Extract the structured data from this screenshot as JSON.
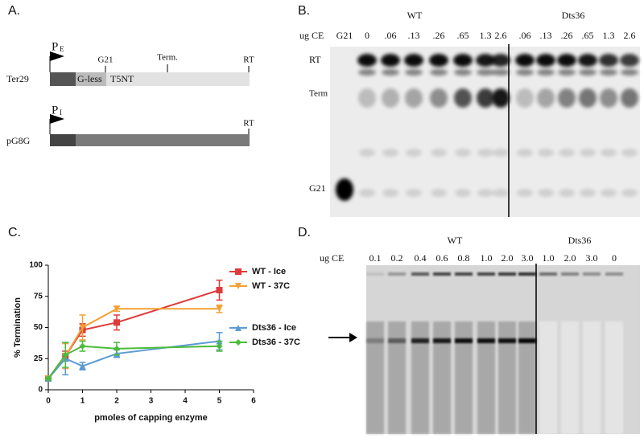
{
  "panel_a": {
    "label": "A.",
    "construct1": {
      "name": "Ter29",
      "promoter": "P",
      "promoter_sub": "E",
      "site1": "G21",
      "site2": "Term.",
      "end": "RT",
      "region1": "G-less",
      "region2": "T5NT"
    },
    "construct2": {
      "name": "pG8G",
      "promoter": "P",
      "promoter_sub": "I",
      "end": "RT"
    }
  },
  "panel_b": {
    "label": "B.",
    "group1": "WT",
    "group2": "Dts36",
    "row_header": "ug CE",
    "lanes": [
      "G21",
      "0",
      ".06",
      ".13",
      ".26",
      ".65",
      "1.3",
      "2.6",
      ".06",
      ".13",
      ".26",
      ".65",
      "1.3",
      "2.6"
    ],
    "bands": [
      "RT",
      "Term",
      "G21"
    ]
  },
  "panel_c": {
    "label": "C."
  },
  "chart_data": {
    "type": "line",
    "x_label": "pmoles of capping enzyme",
    "y_label": "% Termination",
    "x": [
      0,
      0.5,
      1,
      2,
      5
    ],
    "xlim": [
      0,
      6
    ],
    "xticks": [
      0,
      1,
      2,
      3,
      4,
      5,
      6
    ],
    "ylim": [
      0,
      100
    ],
    "yticks": [
      0,
      25,
      50,
      75,
      100
    ],
    "grid": false,
    "legend": "right",
    "series": [
      {
        "name": "WT - Ice",
        "color": "#e03a3a",
        "marker": "square",
        "values": [
          9,
          27,
          48,
          54,
          80
        ],
        "errors": [
          1,
          4,
          5,
          6,
          8
        ]
      },
      {
        "name": "WT - 37C",
        "color": "#f5a035",
        "marker": "triangle-down",
        "values": [
          9,
          27,
          50,
          65,
          65
        ],
        "errors": [
          1,
          10,
          10,
          2,
          3
        ]
      },
      {
        "name": "Dts36 - Ice",
        "color": "#5b9bd5",
        "marker": "triangle-up",
        "values": [
          9,
          25,
          19,
          29,
          39
        ],
        "errors": [
          1,
          13,
          3,
          3,
          7
        ]
      },
      {
        "name": "Dts36 - 37C",
        "color": "#4cbb3c",
        "marker": "diamond",
        "values": [
          9,
          28,
          35,
          33,
          35
        ],
        "errors": [
          1,
          10,
          4,
          5,
          4
        ]
      }
    ]
  },
  "panel_d": {
    "label": "D.",
    "group1": "WT",
    "group2": "Dts36",
    "row_header": "ug CE",
    "lanes": [
      "0.1",
      "0.2",
      "0.4",
      "0.6",
      "0.8",
      "1.0",
      "2.0",
      "3.0",
      "1.0",
      "2.0",
      "3.0",
      "0"
    ]
  }
}
